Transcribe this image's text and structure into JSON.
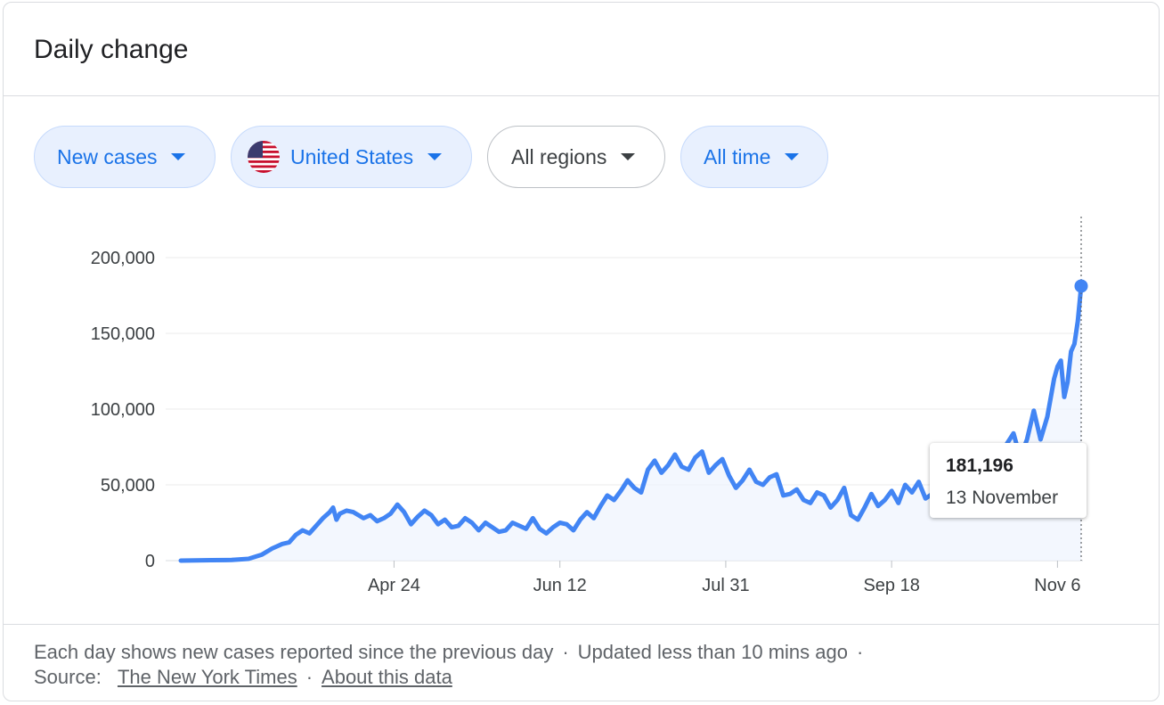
{
  "header": {
    "title": "Daily change"
  },
  "filters": [
    {
      "label": "New cases",
      "style": "selected"
    },
    {
      "label": "United States",
      "style": "selected",
      "icon": "us-flag-icon"
    },
    {
      "label": "All regions",
      "style": "neutral"
    },
    {
      "label": "All time",
      "style": "selected"
    }
  ],
  "tooltip": {
    "value": "181,196",
    "date": "13 November"
  },
  "footer": {
    "description": "Each day shows new cases reported since the previous day",
    "updated": "Updated less than 10 mins ago",
    "source_label": "Source:",
    "source_link": "The New York Times",
    "about_link": "About this data"
  },
  "colors": {
    "line": "#4285f4",
    "accent": "#1a73e8",
    "chip_bg": "#e8f0fe"
  },
  "chart_data": {
    "type": "area",
    "x_start": "2020-02-21",
    "x_end": "2020-11-13",
    "ylim": [
      0,
      200000
    ],
    "yticks": [
      0,
      50000,
      100000,
      150000,
      200000
    ],
    "ytick_labels": [
      "0",
      "50,000",
      "100,000",
      "150,000",
      "200,000"
    ],
    "xticks": [
      "2020-04-24",
      "2020-06-12",
      "2020-07-31",
      "2020-09-18",
      "2020-11-06"
    ],
    "xtick_labels": [
      "Apr 24",
      "Jun 12",
      "Jul 31",
      "Sep 18",
      "Nov 6"
    ],
    "grid": true,
    "series": [
      {
        "values": [
          [
            "2020-02-21",
            0
          ],
          [
            "2020-03-01",
            300
          ],
          [
            "2020-03-07",
            400
          ],
          [
            "2020-03-12",
            1200
          ],
          [
            "2020-03-16",
            4000
          ],
          [
            "2020-03-19",
            8000
          ],
          [
            "2020-03-22",
            11000
          ],
          [
            "2020-03-24",
            12000
          ],
          [
            "2020-03-26",
            17000
          ],
          [
            "2020-03-28",
            20000
          ],
          [
            "2020-03-30",
            18000
          ],
          [
            "2020-04-01",
            23000
          ],
          [
            "2020-04-03",
            28000
          ],
          [
            "2020-04-05",
            32000
          ],
          [
            "2020-04-06",
            35000
          ],
          [
            "2020-04-07",
            27000
          ],
          [
            "2020-04-08",
            31000
          ],
          [
            "2020-04-10",
            33000
          ],
          [
            "2020-04-12",
            32000
          ],
          [
            "2020-04-15",
            28000
          ],
          [
            "2020-04-17",
            30000
          ],
          [
            "2020-04-19",
            26000
          ],
          [
            "2020-04-21",
            28000
          ],
          [
            "2020-04-23",
            31000
          ],
          [
            "2020-04-24",
            34000
          ],
          [
            "2020-04-25",
            37000
          ],
          [
            "2020-04-27",
            32000
          ],
          [
            "2020-04-29",
            24000
          ],
          [
            "2020-05-01",
            29000
          ],
          [
            "2020-05-03",
            33000
          ],
          [
            "2020-05-05",
            30000
          ],
          [
            "2020-05-07",
            24000
          ],
          [
            "2020-05-09",
            27000
          ],
          [
            "2020-05-11",
            22000
          ],
          [
            "2020-05-13",
            23000
          ],
          [
            "2020-05-15",
            28000
          ],
          [
            "2020-05-17",
            25000
          ],
          [
            "2020-05-19",
            20000
          ],
          [
            "2020-05-21",
            25000
          ],
          [
            "2020-05-23",
            22000
          ],
          [
            "2020-05-25",
            19000
          ],
          [
            "2020-05-27",
            20000
          ],
          [
            "2020-05-29",
            25000
          ],
          [
            "2020-05-31",
            23000
          ],
          [
            "2020-06-02",
            21000
          ],
          [
            "2020-06-04",
            28000
          ],
          [
            "2020-06-06",
            21000
          ],
          [
            "2020-06-08",
            18000
          ],
          [
            "2020-06-10",
            22000
          ],
          [
            "2020-06-12",
            25000
          ],
          [
            "2020-06-14",
            24000
          ],
          [
            "2020-06-16",
            20000
          ],
          [
            "2020-06-18",
            27000
          ],
          [
            "2020-06-20",
            32000
          ],
          [
            "2020-06-22",
            28000
          ],
          [
            "2020-06-24",
            36000
          ],
          [
            "2020-06-26",
            43000
          ],
          [
            "2020-06-28",
            40000
          ],
          [
            "2020-06-30",
            46000
          ],
          [
            "2020-07-02",
            53000
          ],
          [
            "2020-07-04",
            48000
          ],
          [
            "2020-07-06",
            45000
          ],
          [
            "2020-07-08",
            60000
          ],
          [
            "2020-07-10",
            66000
          ],
          [
            "2020-07-12",
            58000
          ],
          [
            "2020-07-14",
            63000
          ],
          [
            "2020-07-16",
            70000
          ],
          [
            "2020-07-18",
            62000
          ],
          [
            "2020-07-20",
            60000
          ],
          [
            "2020-07-22",
            68000
          ],
          [
            "2020-07-24",
            72000
          ],
          [
            "2020-07-26",
            58000
          ],
          [
            "2020-07-28",
            63000
          ],
          [
            "2020-07-30",
            67000
          ],
          [
            "2020-08-01",
            56000
          ],
          [
            "2020-08-03",
            48000
          ],
          [
            "2020-08-05",
            53000
          ],
          [
            "2020-08-07",
            60000
          ],
          [
            "2020-08-09",
            52000
          ],
          [
            "2020-08-11",
            50000
          ],
          [
            "2020-08-13",
            55000
          ],
          [
            "2020-08-15",
            57000
          ],
          [
            "2020-08-17",
            43000
          ],
          [
            "2020-08-19",
            44000
          ],
          [
            "2020-08-21",
            47000
          ],
          [
            "2020-08-23",
            40000
          ],
          [
            "2020-08-25",
            38000
          ],
          [
            "2020-08-27",
            45000
          ],
          [
            "2020-08-29",
            43000
          ],
          [
            "2020-08-31",
            35000
          ],
          [
            "2020-09-02",
            40000
          ],
          [
            "2020-09-04",
            48000
          ],
          [
            "2020-09-06",
            30000
          ],
          [
            "2020-09-08",
            27000
          ],
          [
            "2020-09-10",
            35000
          ],
          [
            "2020-09-12",
            44000
          ],
          [
            "2020-09-14",
            36000
          ],
          [
            "2020-09-16",
            40000
          ],
          [
            "2020-09-18",
            46000
          ],
          [
            "2020-09-20",
            38000
          ],
          [
            "2020-09-22",
            50000
          ],
          [
            "2020-09-24",
            45000
          ],
          [
            "2020-09-26",
            52000
          ],
          [
            "2020-09-28",
            41000
          ],
          [
            "2020-09-30",
            44000
          ],
          [
            "2020-10-02",
            50000
          ],
          [
            "2020-10-04",
            42000
          ],
          [
            "2020-10-06",
            48000
          ],
          [
            "2020-10-08",
            56000
          ],
          [
            "2020-10-10",
            52000
          ],
          [
            "2020-10-12",
            50000
          ],
          [
            "2020-10-14",
            60000
          ],
          [
            "2020-10-16",
            70000
          ],
          [
            "2020-10-18",
            62000
          ],
          [
            "2020-10-20",
            64000
          ],
          [
            "2020-10-22",
            77000
          ],
          [
            "2020-10-24",
            84000
          ],
          [
            "2020-10-26",
            68000
          ],
          [
            "2020-10-28",
            80000
          ],
          [
            "2020-10-30",
            99000
          ],
          [
            "2020-11-01",
            80000
          ],
          [
            "2020-11-03",
            95000
          ],
          [
            "2020-11-05",
            120000
          ],
          [
            "2020-11-06",
            128000
          ],
          [
            "2020-11-07",
            132000
          ],
          [
            "2020-11-08",
            108000
          ],
          [
            "2020-11-09",
            118000
          ],
          [
            "2020-11-10",
            138000
          ],
          [
            "2020-11-11",
            143000
          ],
          [
            "2020-11-12",
            158000
          ],
          [
            "2020-11-13",
            181196
          ]
        ]
      }
    ],
    "highlight": {
      "x": "2020-11-13",
      "y": 181196
    }
  }
}
